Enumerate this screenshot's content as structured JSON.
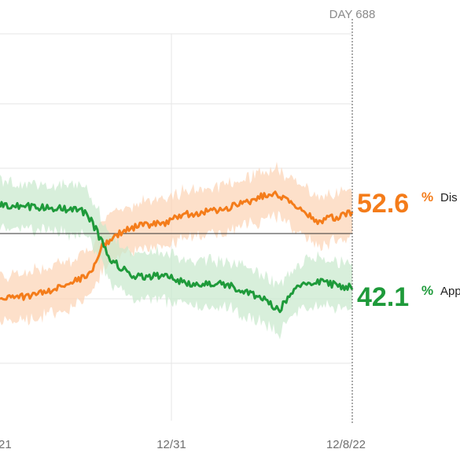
{
  "chart_data": {
    "type": "line",
    "x_ticks": [
      "21",
      "12/31",
      "12/8/22"
    ],
    "marker_label": "DAY 688",
    "reference_line": 50,
    "series": [
      {
        "name": "Dis",
        "color": "#f47c1a",
        "band_color": "#fcd3b3",
        "latest_value": "52.6",
        "unit": "%"
      },
      {
        "name": "App",
        "color": "#1e9a3a",
        "band_color": "#c8e8cc",
        "latest_value": "42.1",
        "unit": "%"
      }
    ]
  }
}
